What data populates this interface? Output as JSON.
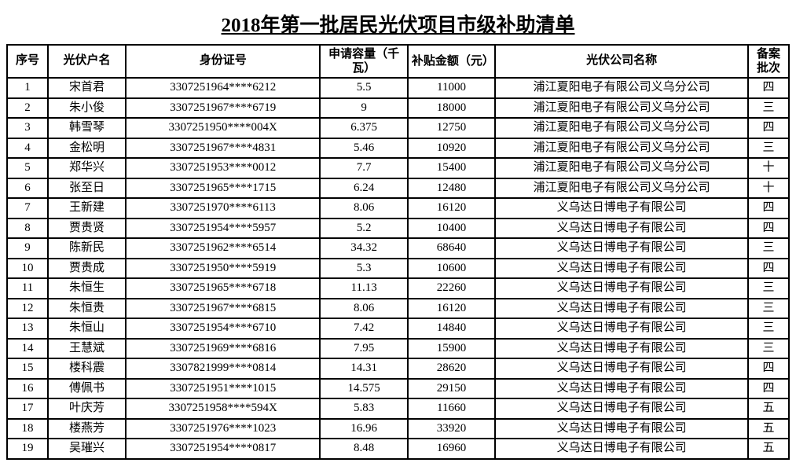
{
  "title": "2018年第一批居民光伏项目市级补助清单",
  "columns": [
    {
      "key": "seq",
      "label": "序号",
      "class": "col-seq"
    },
    {
      "key": "name",
      "label": "光伏户名",
      "class": "col-name"
    },
    {
      "key": "id",
      "label": "身份证号",
      "class": "col-id"
    },
    {
      "key": "capacity",
      "label": "申请容量（千瓦）",
      "class": "col-capacity",
      "multiline": true
    },
    {
      "key": "subsidy",
      "label": "补贴金额（元）",
      "class": "col-subsidy",
      "multiline": true
    },
    {
      "key": "company",
      "label": "光伏公司名称",
      "class": "col-company"
    },
    {
      "key": "batch",
      "label": "备案批次",
      "class": "col-batch",
      "multiline": true
    }
  ],
  "rows": [
    {
      "seq": "1",
      "name": "宋首君",
      "id": "3307251964****6212",
      "capacity": "5.5",
      "subsidy": "11000",
      "company": "浦江夏阳电子有限公司义乌分公司",
      "batch": "四"
    },
    {
      "seq": "2",
      "name": "朱小俊",
      "id": "3307251967****6719",
      "capacity": "9",
      "subsidy": "18000",
      "company": "浦江夏阳电子有限公司义乌分公司",
      "batch": "三"
    },
    {
      "seq": "3",
      "name": "韩雪琴",
      "id": "3307251950****004X",
      "capacity": "6.375",
      "subsidy": "12750",
      "company": "浦江夏阳电子有限公司义乌分公司",
      "batch": "四"
    },
    {
      "seq": "4",
      "name": "金松明",
      "id": "3307251967****4831",
      "capacity": "5.46",
      "subsidy": "10920",
      "company": "浦江夏阳电子有限公司义乌分公司",
      "batch": "三"
    },
    {
      "seq": "5",
      "name": "郑华兴",
      "id": "3307251953****0012",
      "capacity": "7.7",
      "subsidy": "15400",
      "company": "浦江夏阳电子有限公司义乌分公司",
      "batch": "十"
    },
    {
      "seq": "6",
      "name": "张至日",
      "id": "3307251965****1715",
      "capacity": "6.24",
      "subsidy": "12480",
      "company": "浦江夏阳电子有限公司义乌分公司",
      "batch": "十"
    },
    {
      "seq": "7",
      "name": "王新建",
      "id": "3307251970****6113",
      "capacity": "8.06",
      "subsidy": "16120",
      "company": "义乌达日博电子有限公司",
      "batch": "四"
    },
    {
      "seq": "8",
      "name": "贾贵贤",
      "id": "3307251954****5957",
      "capacity": "5.2",
      "subsidy": "10400",
      "company": "义乌达日博电子有限公司",
      "batch": "四"
    },
    {
      "seq": "9",
      "name": "陈新民",
      "id": "3307251962****6514",
      "capacity": "34.32",
      "subsidy": "68640",
      "company": "义乌达日博电子有限公司",
      "batch": "三"
    },
    {
      "seq": "10",
      "name": "贾贵成",
      "id": "3307251950****5919",
      "capacity": "5.3",
      "subsidy": "10600",
      "company": "义乌达日博电子有限公司",
      "batch": "四"
    },
    {
      "seq": "11",
      "name": "朱恒生",
      "id": "3307251965****6718",
      "capacity": "11.13",
      "subsidy": "22260",
      "company": "义乌达日博电子有限公司",
      "batch": "三"
    },
    {
      "seq": "12",
      "name": "朱恒贵",
      "id": "3307251967****6815",
      "capacity": "8.06",
      "subsidy": "16120",
      "company": "义乌达日博电子有限公司",
      "batch": "三"
    },
    {
      "seq": "13",
      "name": "朱恒山",
      "id": "3307251954****6710",
      "capacity": "7.42",
      "subsidy": "14840",
      "company": "义乌达日博电子有限公司",
      "batch": "三"
    },
    {
      "seq": "14",
      "name": "王慧斌",
      "id": "3307251969****6816",
      "capacity": "7.95",
      "subsidy": "15900",
      "company": "义乌达日博电子有限公司",
      "batch": "三"
    },
    {
      "seq": "15",
      "name": "楼科震",
      "id": "3307821999****0814",
      "capacity": "14.31",
      "subsidy": "28620",
      "company": "义乌达日博电子有限公司",
      "batch": "四"
    },
    {
      "seq": "16",
      "name": "傅佩书",
      "id": "3307251951****1015",
      "capacity": "14.575",
      "subsidy": "29150",
      "company": "义乌达日博电子有限公司",
      "batch": "四"
    },
    {
      "seq": "17",
      "name": "叶庆芳",
      "id": "3307251958****594X",
      "capacity": "5.83",
      "subsidy": "11660",
      "company": "义乌达日博电子有限公司",
      "batch": "五"
    },
    {
      "seq": "18",
      "name": "楼燕芳",
      "id": "3307251976****1023",
      "capacity": "16.96",
      "subsidy": "33920",
      "company": "义乌达日博电子有限公司",
      "batch": "五"
    },
    {
      "seq": "19",
      "name": "吴璀兴",
      "id": "3307251954****0817",
      "capacity": "8.48",
      "subsidy": "16960",
      "company": "义乌达日博电子有限公司",
      "batch": "五"
    }
  ],
  "styling": {
    "background_color": "#ffffff",
    "border_color": "#000000",
    "border_width": 2,
    "title_fontsize": 25,
    "cell_fontsize": 15,
    "font_family": "SimSun"
  }
}
